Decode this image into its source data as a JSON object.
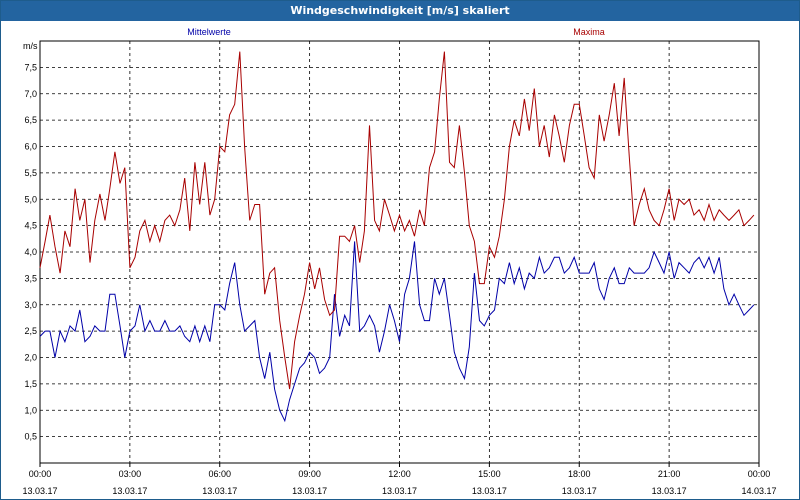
{
  "window": {
    "title": "Windgeschwindigkeit [m/s] skaliert"
  },
  "chart_data": {
    "type": "line",
    "title": "Windgeschwindigkeit [m/s] skaliert",
    "ylabel": "m/s",
    "ylim": [
      0,
      8
    ],
    "yticks": [
      "0,5",
      "1,0",
      "1,5",
      "2,0",
      "2,5",
      "3,0",
      "3,5",
      "4,0",
      "4,5",
      "5,0",
      "5,5",
      "6,0",
      "6,5",
      "7,0",
      "7,5"
    ],
    "xlim": [
      0,
      24
    ],
    "xtick_labels": [
      {
        "time": "00:00",
        "date": "13.03.17"
      },
      {
        "time": "03:00",
        "date": "13.03.17"
      },
      {
        "time": "06:00",
        "date": "13.03.17"
      },
      {
        "time": "09:00",
        "date": "13.03.17"
      },
      {
        "time": "12:00",
        "date": "13.03.17"
      },
      {
        "time": "15:00",
        "date": "13.03.17"
      },
      {
        "time": "18:00",
        "date": "13.03.17"
      },
      {
        "time": "21:00",
        "date": "13.03.17"
      },
      {
        "time": "00:00",
        "date": "14.03.17"
      }
    ],
    "grid": true,
    "series": [
      {
        "name": "Mittelwerte",
        "color": "#0000a8",
        "x": [
          0.0,
          0.17,
          0.33,
          0.5,
          0.67,
          0.83,
          1.0,
          1.17,
          1.33,
          1.5,
          1.67,
          1.83,
          2.0,
          2.17,
          2.33,
          2.5,
          2.67,
          2.83,
          3.0,
          3.17,
          3.33,
          3.5,
          3.67,
          3.83,
          4.0,
          4.17,
          4.33,
          4.5,
          4.67,
          4.83,
          5.0,
          5.17,
          5.33,
          5.5,
          5.67,
          5.83,
          6.0,
          6.17,
          6.33,
          6.5,
          6.67,
          6.83,
          7.0,
          7.17,
          7.33,
          7.5,
          7.67,
          7.83,
          8.0,
          8.17,
          8.33,
          8.5,
          8.67,
          8.83,
          9.0,
          9.17,
          9.33,
          9.5,
          9.67,
          9.83,
          10.0,
          10.17,
          10.33,
          10.5,
          10.67,
          10.83,
          11.0,
          11.17,
          11.33,
          11.5,
          11.67,
          11.83,
          12.0,
          12.17,
          12.33,
          12.5,
          12.67,
          12.83,
          13.0,
          13.17,
          13.33,
          13.5,
          13.67,
          13.83,
          14.0,
          14.17,
          14.33,
          14.5,
          14.67,
          14.83,
          15.0,
          15.17,
          15.33,
          15.5,
          15.67,
          15.83,
          16.0,
          16.17,
          16.33,
          16.5,
          16.67,
          16.83,
          17.0,
          17.17,
          17.33,
          17.5,
          17.67,
          17.83,
          18.0,
          18.17,
          18.33,
          18.5,
          18.67,
          18.83,
          19.0,
          19.17,
          19.33,
          19.5,
          19.67,
          19.83,
          20.0,
          20.17,
          20.33,
          20.5,
          20.67,
          20.83,
          21.0,
          21.17,
          21.33,
          21.5,
          21.67,
          21.83,
          22.0,
          22.17,
          22.33,
          22.5,
          22.67,
          22.83,
          23.0,
          23.17,
          23.33,
          23.5,
          23.67,
          23.83
        ],
        "values": [
          2.4,
          2.5,
          2.5,
          2.0,
          2.5,
          2.3,
          2.6,
          2.5,
          2.9,
          2.3,
          2.4,
          2.6,
          2.5,
          2.5,
          3.2,
          3.2,
          2.6,
          2.0,
          2.5,
          2.6,
          3.0,
          2.5,
          2.7,
          2.5,
          2.5,
          2.7,
          2.5,
          2.5,
          2.6,
          2.4,
          2.3,
          2.6,
          2.3,
          2.6,
          2.3,
          3.0,
          3.0,
          2.9,
          3.4,
          3.8,
          3.0,
          2.5,
          2.6,
          2.7,
          2.0,
          1.6,
          2.1,
          1.4,
          1.0,
          0.8,
          1.2,
          1.5,
          1.8,
          1.9,
          2.1,
          2.0,
          1.7,
          1.8,
          2.0,
          3.2,
          2.4,
          2.8,
          2.6,
          4.2,
          2.5,
          2.6,
          2.8,
          2.6,
          2.1,
          2.5,
          3.0,
          2.7,
          2.3,
          3.2,
          3.5,
          4.2,
          3.0,
          2.7,
          2.7,
          3.5,
          3.2,
          3.5,
          2.8,
          2.1,
          1.8,
          1.6,
          2.2,
          3.6,
          2.7,
          2.6,
          2.8,
          2.9,
          3.5,
          3.4,
          3.8,
          3.4,
          3.7,
          3.3,
          3.6,
          3.5,
          3.9,
          3.6,
          3.7,
          3.9,
          3.9,
          3.6,
          3.7,
          3.9,
          3.6,
          3.6,
          3.6,
          3.8,
          3.3,
          3.1,
          3.5,
          3.7,
          3.4,
          3.4,
          3.7,
          3.6,
          3.6,
          3.6,
          3.7,
          4.0,
          3.8,
          3.6,
          4.0,
          3.5,
          3.8,
          3.7,
          3.6,
          3.8,
          3.9,
          3.7,
          3.9,
          3.6,
          3.9,
          3.3,
          3.0,
          3.2,
          3.0,
          2.8,
          2.9,
          3.0
        ],
        "_": ""
      },
      {
        "name": "Maxima",
        "color": "#a80000",
        "x": [
          0.0,
          0.17,
          0.33,
          0.5,
          0.67,
          0.83,
          1.0,
          1.17,
          1.33,
          1.5,
          1.67,
          1.83,
          2.0,
          2.17,
          2.33,
          2.5,
          2.67,
          2.83,
          3.0,
          3.17,
          3.33,
          3.5,
          3.67,
          3.83,
          4.0,
          4.17,
          4.33,
          4.5,
          4.67,
          4.83,
          5.0,
          5.17,
          5.33,
          5.5,
          5.67,
          5.83,
          6.0,
          6.17,
          6.33,
          6.5,
          6.67,
          6.83,
          7.0,
          7.17,
          7.33,
          7.5,
          7.67,
          7.83,
          8.0,
          8.17,
          8.33,
          8.5,
          8.67,
          8.83,
          9.0,
          9.17,
          9.33,
          9.5,
          9.67,
          9.83,
          10.0,
          10.17,
          10.33,
          10.5,
          10.67,
          10.83,
          11.0,
          11.17,
          11.33,
          11.5,
          11.67,
          11.83,
          12.0,
          12.17,
          12.33,
          12.5,
          12.67,
          12.83,
          13.0,
          13.17,
          13.33,
          13.5,
          13.67,
          13.83,
          14.0,
          14.17,
          14.33,
          14.5,
          14.67,
          14.83,
          15.0,
          15.17,
          15.33,
          15.5,
          15.67,
          15.83,
          16.0,
          16.17,
          16.33,
          16.5,
          16.67,
          16.83,
          17.0,
          17.17,
          17.33,
          17.5,
          17.67,
          17.83,
          18.0,
          18.17,
          18.33,
          18.5,
          18.67,
          18.83,
          19.0,
          19.17,
          19.33,
          19.5,
          19.67,
          19.83,
          20.0,
          20.17,
          20.33,
          20.5,
          20.67,
          20.83,
          21.0,
          21.17,
          21.33,
          21.5,
          21.67,
          21.83,
          22.0,
          22.17,
          22.33,
          22.5,
          22.67,
          22.83,
          23.0,
          23.17,
          23.33,
          23.5,
          23.67,
          23.83
        ],
        "values": [
          3.7,
          4.2,
          4.7,
          4.1,
          3.6,
          4.4,
          4.1,
          5.2,
          4.6,
          5.0,
          3.8,
          4.6,
          5.1,
          4.6,
          5.2,
          5.9,
          5.3,
          5.6,
          3.7,
          3.9,
          4.4,
          4.6,
          4.2,
          4.5,
          4.2,
          4.6,
          4.7,
          4.5,
          4.8,
          5.4,
          4.4,
          5.7,
          4.9,
          5.7,
          4.7,
          5.0,
          6.0,
          5.9,
          6.6,
          6.8,
          7.8,
          6.0,
          4.6,
          4.9,
          4.9,
          3.2,
          3.6,
          3.7,
          2.7,
          2.0,
          1.4,
          2.3,
          2.8,
          3.2,
          3.8,
          3.3,
          3.7,
          3.1,
          2.8,
          2.9,
          4.3,
          4.3,
          4.2,
          4.5,
          3.8,
          4.4,
          6.4,
          4.6,
          4.4,
          5.0,
          4.7,
          4.4,
          4.7,
          4.4,
          4.6,
          4.3,
          4.8,
          4.5,
          5.6,
          5.9,
          6.9,
          7.8,
          5.7,
          5.6,
          6.4,
          5.5,
          4.5,
          4.2,
          3.4,
          3.4,
          4.1,
          3.9,
          4.3,
          5.0,
          6.0,
          6.5,
          6.2,
          6.9,
          6.3,
          7.1,
          6.0,
          6.4,
          5.8,
          6.6,
          6.2,
          5.7,
          6.4,
          6.8,
          6.8,
          6.2,
          5.6,
          5.4,
          6.6,
          6.1,
          6.6,
          7.2,
          6.2,
          7.3,
          5.8,
          4.5,
          4.9,
          5.2,
          4.8,
          4.6,
          4.5,
          4.8,
          5.2,
          4.6,
          5.0,
          4.9,
          5.0,
          4.7,
          4.8,
          4.6,
          4.9,
          4.6,
          4.8,
          4.7,
          4.6,
          4.7,
          4.8,
          4.5,
          4.6,
          4.7
        ],
        "_": ""
      }
    ],
    "legend_position": "top"
  }
}
